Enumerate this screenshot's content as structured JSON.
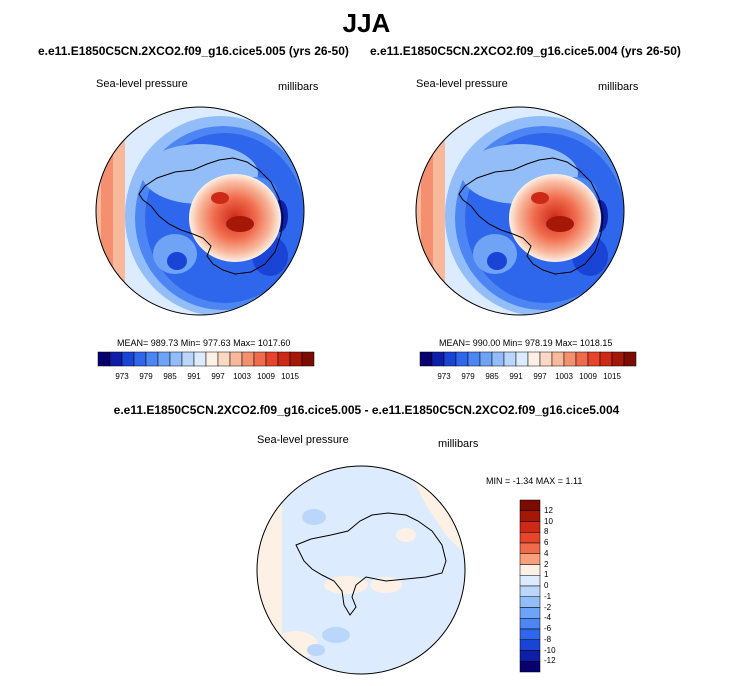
{
  "figure": {
    "season": "JJA",
    "panels": [
      {
        "case": "e.e11.E1850C5CN.2XCO2.f09_g16.cice5.005 (yrs 26-50)",
        "variable": "Sea-level pressure",
        "units": "millibars",
        "stats": "MEAN= 989.73  Min= 977.63  Max= 1017.60"
      },
      {
        "case": "e.e11.E1850C5CN.2XCO2.f09_g16.cice5.004 (yrs 26-50)",
        "variable": "Sea-level pressure",
        "units": "millibars",
        "stats": "MEAN= 990.00  Min= 978.19  Max= 1018.15"
      }
    ],
    "diff": {
      "title": "e.e11.E1850C5CN.2XCO2.f09_g16.cice5.005 - e.e11.E1850C5CN.2XCO2.f09_g16.cice5.004",
      "variable": "Sea-level pressure",
      "units": "millibars",
      "stats": "MIN =  -1.34 MAX =   1.11"
    },
    "colorbar_main": {
      "ticks": [
        "973",
        "979",
        "985",
        "991",
        "997",
        "1003",
        "1009",
        "1015"
      ],
      "colors": [
        "#08006e",
        "#0d1fa8",
        "#1a44d6",
        "#2f67ec",
        "#4d86f3",
        "#6ea3f6",
        "#93bdf8",
        "#bad6fb",
        "#dcebfd",
        "#fdf1e6",
        "#fbd8c4",
        "#f8b89c",
        "#f49070",
        "#f06a4c",
        "#e7442c",
        "#cc2a16",
        "#a51808",
        "#7a0c02"
      ]
    },
    "colorbar_diff": {
      "ticks": [
        "12",
        "10",
        "8",
        "6",
        "4",
        "2",
        "1",
        "0",
        "-1",
        "-2",
        "-4",
        "-6",
        "-8",
        "-10",
        "-12"
      ],
      "colors": [
        "#7a0c02",
        "#a51808",
        "#cc2a16",
        "#e7442c",
        "#f06a4c",
        "#f8a07c",
        "#fdf1e6",
        "#dcebfd",
        "#bad6fb",
        "#93bdf8",
        "#6ea3f6",
        "#4d86f3",
        "#2f67ec",
        "#1a44d6",
        "#0d1fa8",
        "#08006e"
      ]
    }
  }
}
